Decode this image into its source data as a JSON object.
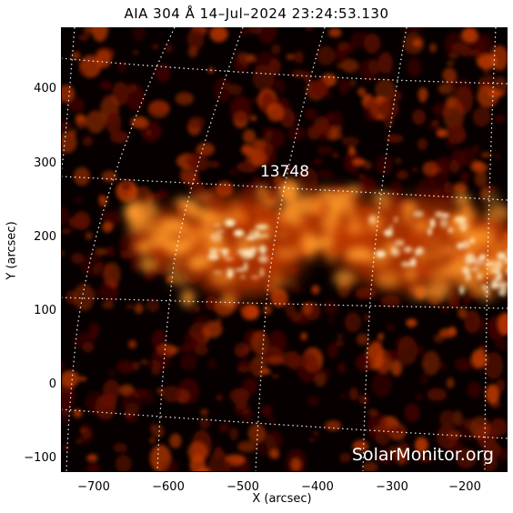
{
  "title": "AIA 304 Å 14–Jul–2024 23:24:53.130",
  "region_label": "13748",
  "watermark": "SolarMonitor.org",
  "axes": {
    "xlabel": "X (arcsec)",
    "ylabel": "Y (arcsec)",
    "x_ticks": [
      "−700",
      "−600",
      "−500",
      "−400",
      "−300",
      "−200"
    ],
    "y_ticks": [
      "400",
      "300",
      "200",
      "100",
      "0",
      "−100"
    ],
    "xlim": [
      -745,
      -145
    ],
    "ylim": [
      -120,
      480
    ]
  },
  "colors": {
    "background": "#070000",
    "grid": "#ffffff",
    "plasma_dim": "#5a0a00",
    "plasma_mid": "#c23a00",
    "plasma_bright": "#ff9a2a",
    "plasma_hot": "#fff0c8"
  }
}
